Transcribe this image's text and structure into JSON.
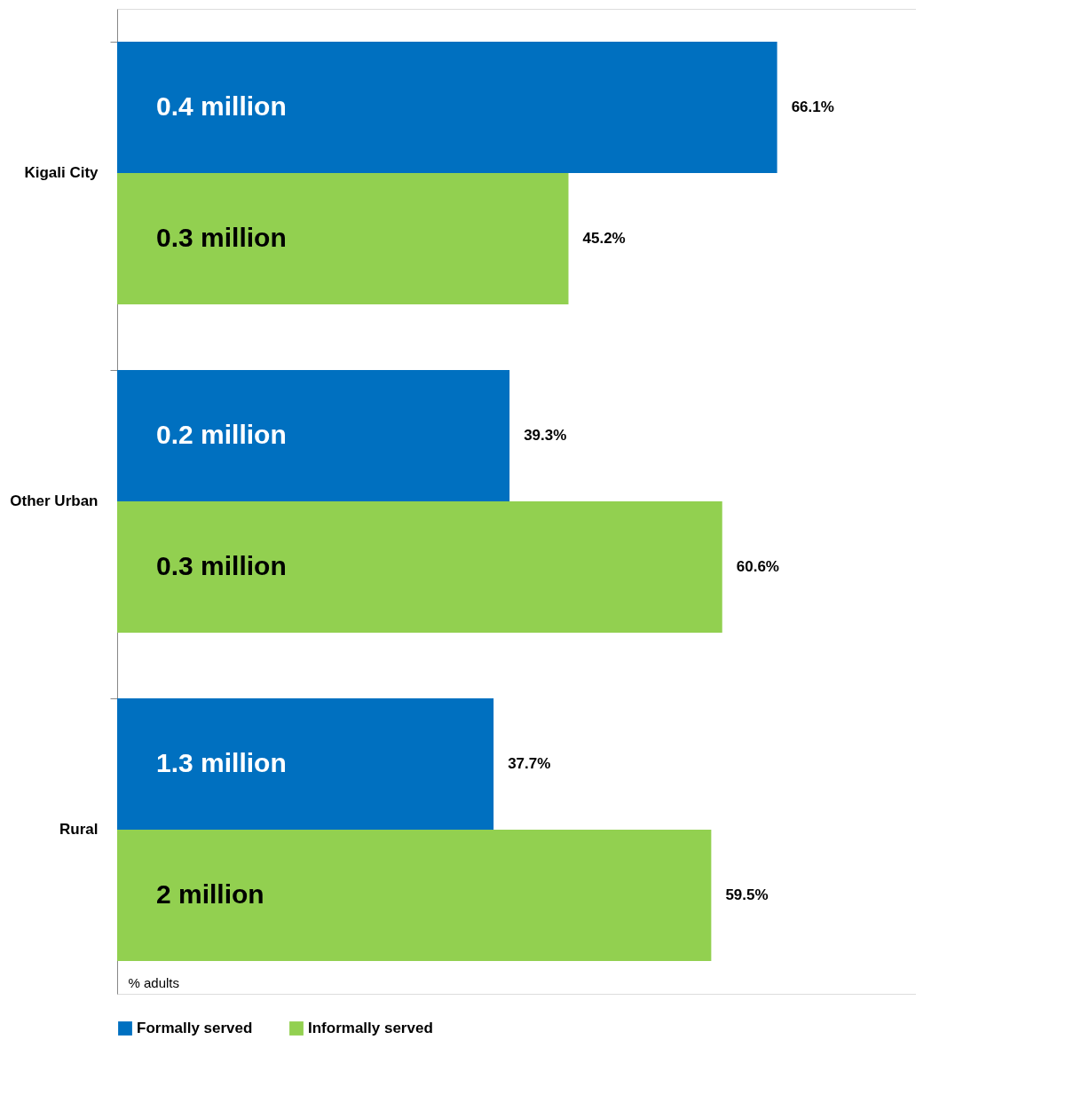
{
  "chart_data": {
    "type": "bar",
    "orientation": "horizontal",
    "categories": [
      "Kigali City",
      "Other Urban",
      "Rural"
    ],
    "series": [
      {
        "name": "Formally served",
        "color": "#0070c0",
        "values": [
          66.1,
          39.3,
          37.7
        ],
        "value_labels": [
          "66.1%",
          "39.3%",
          "37.7%"
        ]
      },
      {
        "name": "Informally served",
        "color": "#92d050",
        "values": [
          45.2,
          60.6,
          59.5
        ],
        "value_labels": [
          "45.2%",
          "60.6%",
          "59.5%"
        ]
      }
    ],
    "xlabel": "% adults",
    "xlim": [
      0,
      80
    ],
    "tick_labels": "y",
    "grid": false,
    "legend": "bottom",
    "annotations": [
      {
        "text": "0.4 million",
        "y": "Kigali City"
      },
      {
        "text": "0.3 million",
        "y": "Kigali City"
      },
      {
        "text": "0.2 million",
        "y": "Other Urban"
      },
      {
        "text": "0.3 million",
        "y": "Other Urban"
      },
      {
        "text": "1.3 million",
        "y": "Rural"
      },
      {
        "text": "2 million",
        "y": "Rural"
      }
    ]
  }
}
